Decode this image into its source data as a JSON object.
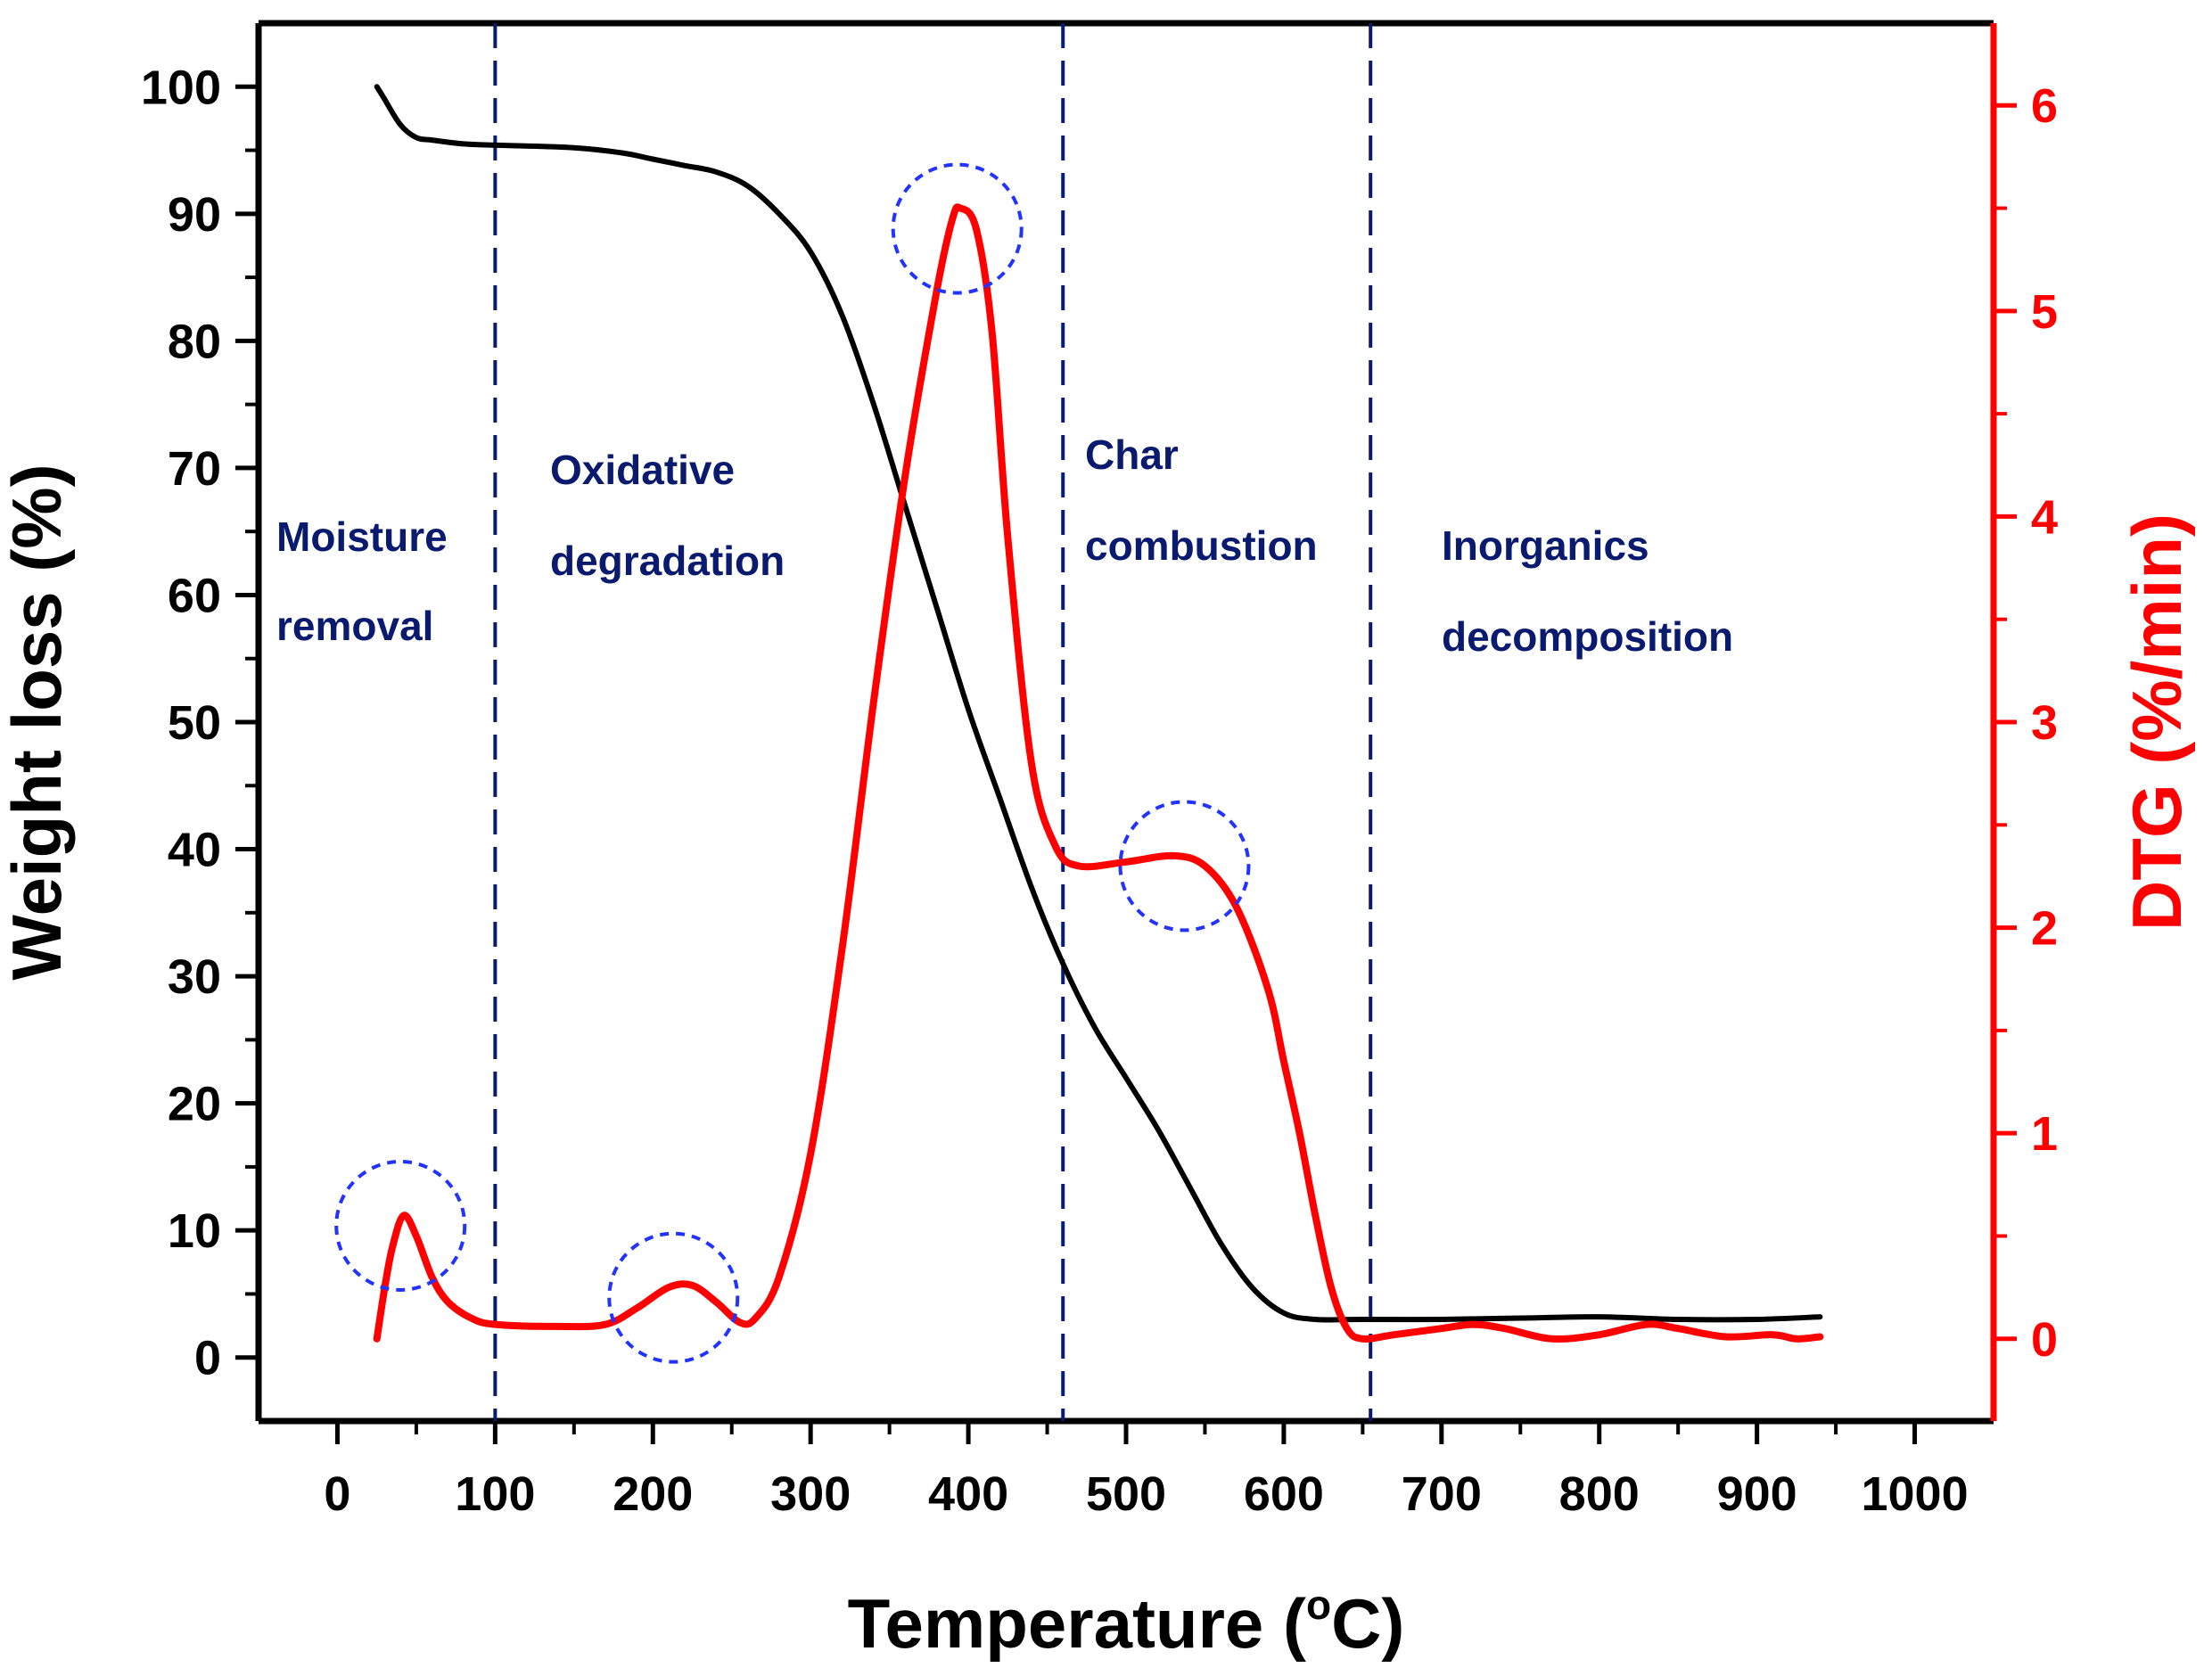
{
  "chart_data": {
    "type": "line",
    "xlabel": "Temperature (°C)",
    "xlabel_main": "Temperature (",
    "xlabel_super": "o",
    "xlabel_end": "C)",
    "ylabel_left": "Weight loss (%)",
    "ylabel_right": "DTG (%/min)",
    "xlim": [
      -50,
      1050
    ],
    "ylim_left": [
      -5,
      105
    ],
    "ylim_right": [
      -0.4,
      6.4
    ],
    "x_ticks": [
      0,
      100,
      200,
      300,
      400,
      500,
      600,
      700,
      800,
      900,
      1000
    ],
    "y_left_ticks": [
      0,
      10,
      20,
      30,
      40,
      50,
      60,
      70,
      80,
      90,
      100
    ],
    "y_right_ticks": [
      0,
      1,
      2,
      3,
      4,
      5,
      6
    ],
    "grid": false,
    "colors": {
      "weight": "#000000",
      "dtg": "#ff0000",
      "dividers": "#0a1a6e",
      "circles": "#2233ff",
      "right_axis": "#ff0000"
    },
    "series": [
      {
        "axis": "left",
        "color": "#000000",
        "points": [
          [
            25,
            100
          ],
          [
            30,
            99
          ],
          [
            40,
            97
          ],
          [
            50,
            96
          ],
          [
            60,
            95.8
          ],
          [
            80,
            95.5
          ],
          [
            100,
            95.4
          ],
          [
            150,
            95.2
          ],
          [
            180,
            94.8
          ],
          [
            200,
            94.3
          ],
          [
            220,
            93.8
          ],
          [
            240,
            93.3
          ],
          [
            260,
            92.2
          ],
          [
            280,
            90
          ],
          [
            300,
            87
          ],
          [
            320,
            82
          ],
          [
            340,
            75
          ],
          [
            360,
            67
          ],
          [
            380,
            59
          ],
          [
            400,
            51
          ],
          [
            420,
            44
          ],
          [
            440,
            37
          ],
          [
            460,
            31
          ],
          [
            480,
            26
          ],
          [
            500,
            22
          ],
          [
            520,
            18
          ],
          [
            540,
            13.5
          ],
          [
            560,
            9
          ],
          [
            580,
            5.5
          ],
          [
            600,
            3.5
          ],
          [
            620,
            3
          ],
          [
            650,
            3
          ],
          [
            700,
            3
          ],
          [
            750,
            3.1
          ],
          [
            800,
            3.2
          ],
          [
            850,
            3
          ],
          [
            900,
            3
          ],
          [
            940,
            3.2
          ]
        ]
      },
      {
        "axis": "right",
        "color": "#ff0000",
        "points": [
          [
            25,
            0
          ],
          [
            30,
            0.25
          ],
          [
            35,
            0.45
          ],
          [
            42,
            0.6
          ],
          [
            50,
            0.5
          ],
          [
            60,
            0.3
          ],
          [
            70,
            0.18
          ],
          [
            85,
            0.1
          ],
          [
            100,
            0.07
          ],
          [
            140,
            0.06
          ],
          [
            170,
            0.07
          ],
          [
            190,
            0.15
          ],
          [
            210,
            0.25
          ],
          [
            225,
            0.26
          ],
          [
            240,
            0.18
          ],
          [
            255,
            0.08
          ],
          [
            265,
            0.1
          ],
          [
            280,
            0.3
          ],
          [
            300,
            0.9
          ],
          [
            320,
            1.9
          ],
          [
            340,
            3.1
          ],
          [
            360,
            4.2
          ],
          [
            380,
            5.1
          ],
          [
            390,
            5.45
          ],
          [
            395,
            5.5
          ],
          [
            405,
            5.4
          ],
          [
            415,
            4.9
          ],
          [
            425,
            3.9
          ],
          [
            440,
            2.8
          ],
          [
            455,
            2.4
          ],
          [
            470,
            2.3
          ],
          [
            500,
            2.32
          ],
          [
            530,
            2.35
          ],
          [
            550,
            2.3
          ],
          [
            570,
            2.1
          ],
          [
            590,
            1.7
          ],
          [
            600,
            1.35
          ],
          [
            610,
            1.0
          ],
          [
            620,
            0.6
          ],
          [
            630,
            0.25
          ],
          [
            640,
            0.05
          ],
          [
            650,
            0
          ],
          [
            670,
            0.02
          ],
          [
            700,
            0.05
          ],
          [
            720,
            0.07
          ],
          [
            740,
            0.05
          ],
          [
            770,
            0.0
          ],
          [
            800,
            0.02
          ],
          [
            830,
            0.07
          ],
          [
            850,
            0.05
          ],
          [
            880,
            0.01
          ],
          [
            910,
            0.02
          ],
          [
            925,
            0.0
          ],
          [
            940,
            0.01
          ]
        ]
      }
    ],
    "dividers_x": [
      100,
      460,
      655
    ],
    "highlight_circles": [
      {
        "x": 40,
        "y_right": 0.55
      },
      {
        "x": 213,
        "y_right": 0.2
      },
      {
        "x": 393,
        "y_right": 5.4
      },
      {
        "x": 537,
        "y_right": 2.3
      }
    ],
    "regions": [
      {
        "lines": [
          "Moisture",
          "removal"
        ]
      },
      {
        "lines": [
          "Oxidative",
          "degradation"
        ]
      },
      {
        "lines": [
          "Char",
          "combustion"
        ]
      },
      {
        "lines": [
          "Inorganics",
          "decomposition"
        ]
      }
    ]
  }
}
